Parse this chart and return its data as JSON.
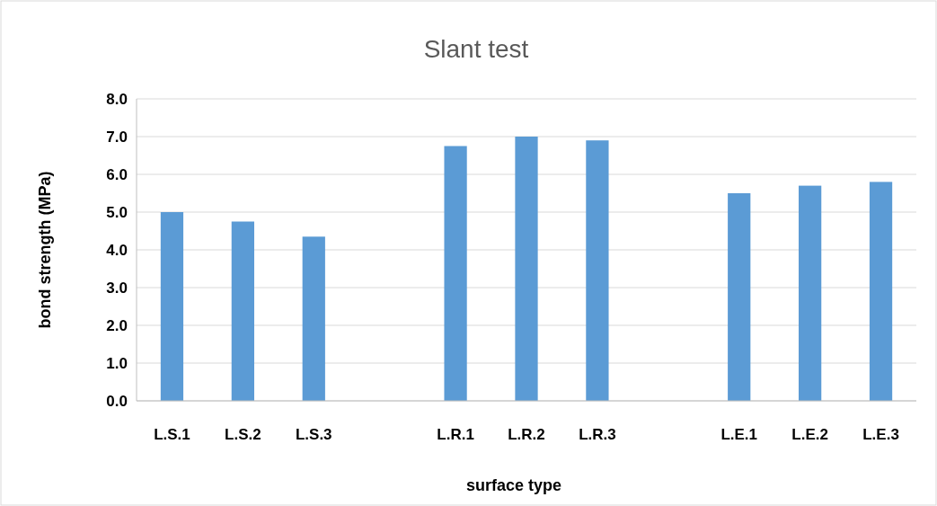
{
  "chart_data": {
    "type": "bar",
    "title": "Slant test",
    "xlabel": "surface type",
    "ylabel": "bond strength (MPa)",
    "categories": [
      "L.S.1",
      "L.S.2",
      "L.S.3",
      null,
      "L.R.1",
      "L.R.2",
      "L.R.3",
      null,
      "L.E.1",
      "L.E.2",
      "L.E.3"
    ],
    "values": [
      5.0,
      4.75,
      4.35,
      null,
      6.75,
      7.0,
      6.9,
      null,
      5.5,
      5.7,
      5.8
    ],
    "color": "#5b9bd5",
    "ylim": [
      0,
      8
    ],
    "yticks": [
      {
        "value": 0,
        "label": "0.0"
      },
      {
        "value": 1,
        "label": "1.0"
      },
      {
        "value": 2,
        "label": "2.0"
      },
      {
        "value": 3,
        "label": "3.0"
      },
      {
        "value": 4,
        "label": "4.0"
      },
      {
        "value": 5,
        "label": "5.0"
      },
      {
        "value": 6,
        "label": "6.0"
      },
      {
        "value": 7,
        "label": "7.0"
      },
      {
        "value": 8,
        "label": "8.0"
      }
    ],
    "grid": "y"
  }
}
